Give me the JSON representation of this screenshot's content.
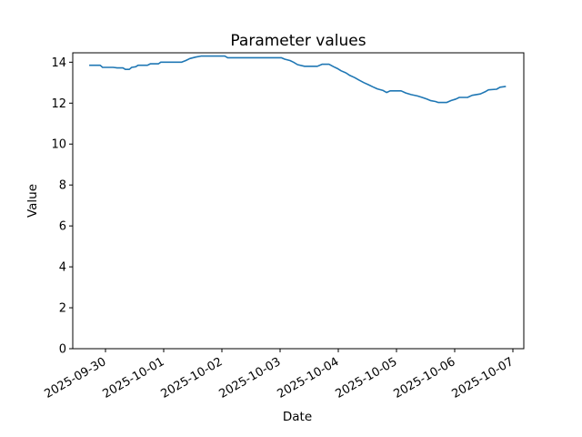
{
  "chart_data": {
    "type": "line",
    "title": "Parameter values",
    "xlabel": "Date",
    "ylabel": "Value",
    "line_color": "#1f77b4",
    "background_color": "#ffffff",
    "grid": false,
    "legend": null,
    "x_axis_note": "x values are fractional days since 2025-09-30 00:00",
    "xlim": [
      -0.5625,
      7.1875
    ],
    "ylim": [
      0,
      14.46
    ],
    "y_ticks": [
      0,
      2,
      4,
      6,
      8,
      10,
      12,
      14
    ],
    "x_ticks": [
      {
        "position": 0,
        "label": "2025-09-30"
      },
      {
        "position": 1,
        "label": "2025-10-01"
      },
      {
        "position": 2,
        "label": "2025-10-02"
      },
      {
        "position": 3,
        "label": "2025-10-03"
      },
      {
        "position": 4,
        "label": "2025-10-04"
      },
      {
        "position": 5,
        "label": "2025-10-05"
      },
      {
        "position": 6,
        "label": "2025-10-06"
      },
      {
        "position": 7,
        "label": "2025-10-07"
      }
    ],
    "series": [
      {
        "name": "parameter-values",
        "points": [
          [
            -0.28,
            13.85
          ],
          [
            -0.09,
            13.85
          ],
          [
            -0.05,
            13.75
          ],
          [
            0.13,
            13.75
          ],
          [
            0.2,
            13.72
          ],
          [
            0.3,
            13.72
          ],
          [
            0.34,
            13.65
          ],
          [
            0.41,
            13.65
          ],
          [
            0.45,
            13.75
          ],
          [
            0.52,
            13.78
          ],
          [
            0.56,
            13.85
          ],
          [
            0.72,
            13.85
          ],
          [
            0.77,
            13.92
          ],
          [
            0.91,
            13.92
          ],
          [
            0.95,
            14.0
          ],
          [
            1.31,
            14.0
          ],
          [
            1.38,
            14.08
          ],
          [
            1.45,
            14.18
          ],
          [
            1.55,
            14.25
          ],
          [
            1.64,
            14.3
          ],
          [
            2.05,
            14.3
          ],
          [
            2.1,
            14.22
          ],
          [
            3.02,
            14.22
          ],
          [
            3.08,
            14.15
          ],
          [
            3.17,
            14.08
          ],
          [
            3.23,
            14.0
          ],
          [
            3.3,
            13.88
          ],
          [
            3.42,
            13.8
          ],
          [
            3.64,
            13.8
          ],
          [
            3.72,
            13.9
          ],
          [
            3.84,
            13.9
          ],
          [
            3.92,
            13.78
          ],
          [
            3.98,
            13.7
          ],
          [
            4.05,
            13.58
          ],
          [
            4.13,
            13.48
          ],
          [
            4.2,
            13.35
          ],
          [
            4.28,
            13.25
          ],
          [
            4.36,
            13.12
          ],
          [
            4.44,
            13.0
          ],
          [
            4.52,
            12.9
          ],
          [
            4.59,
            12.8
          ],
          [
            4.67,
            12.7
          ],
          [
            4.77,
            12.62
          ],
          [
            4.83,
            12.52
          ],
          [
            4.89,
            12.6
          ],
          [
            5.08,
            12.6
          ],
          [
            5.16,
            12.5
          ],
          [
            5.25,
            12.42
          ],
          [
            5.36,
            12.35
          ],
          [
            5.44,
            12.28
          ],
          [
            5.52,
            12.2
          ],
          [
            5.59,
            12.12
          ],
          [
            5.67,
            12.08
          ],
          [
            5.72,
            12.03
          ],
          [
            5.86,
            12.03
          ],
          [
            5.94,
            12.13
          ],
          [
            6.02,
            12.2
          ],
          [
            6.08,
            12.28
          ],
          [
            6.22,
            12.28
          ],
          [
            6.3,
            12.38
          ],
          [
            6.44,
            12.45
          ],
          [
            6.52,
            12.55
          ],
          [
            6.58,
            12.65
          ],
          [
            6.72,
            12.68
          ],
          [
            6.78,
            12.78
          ],
          [
            6.88,
            12.82
          ]
        ]
      }
    ]
  }
}
